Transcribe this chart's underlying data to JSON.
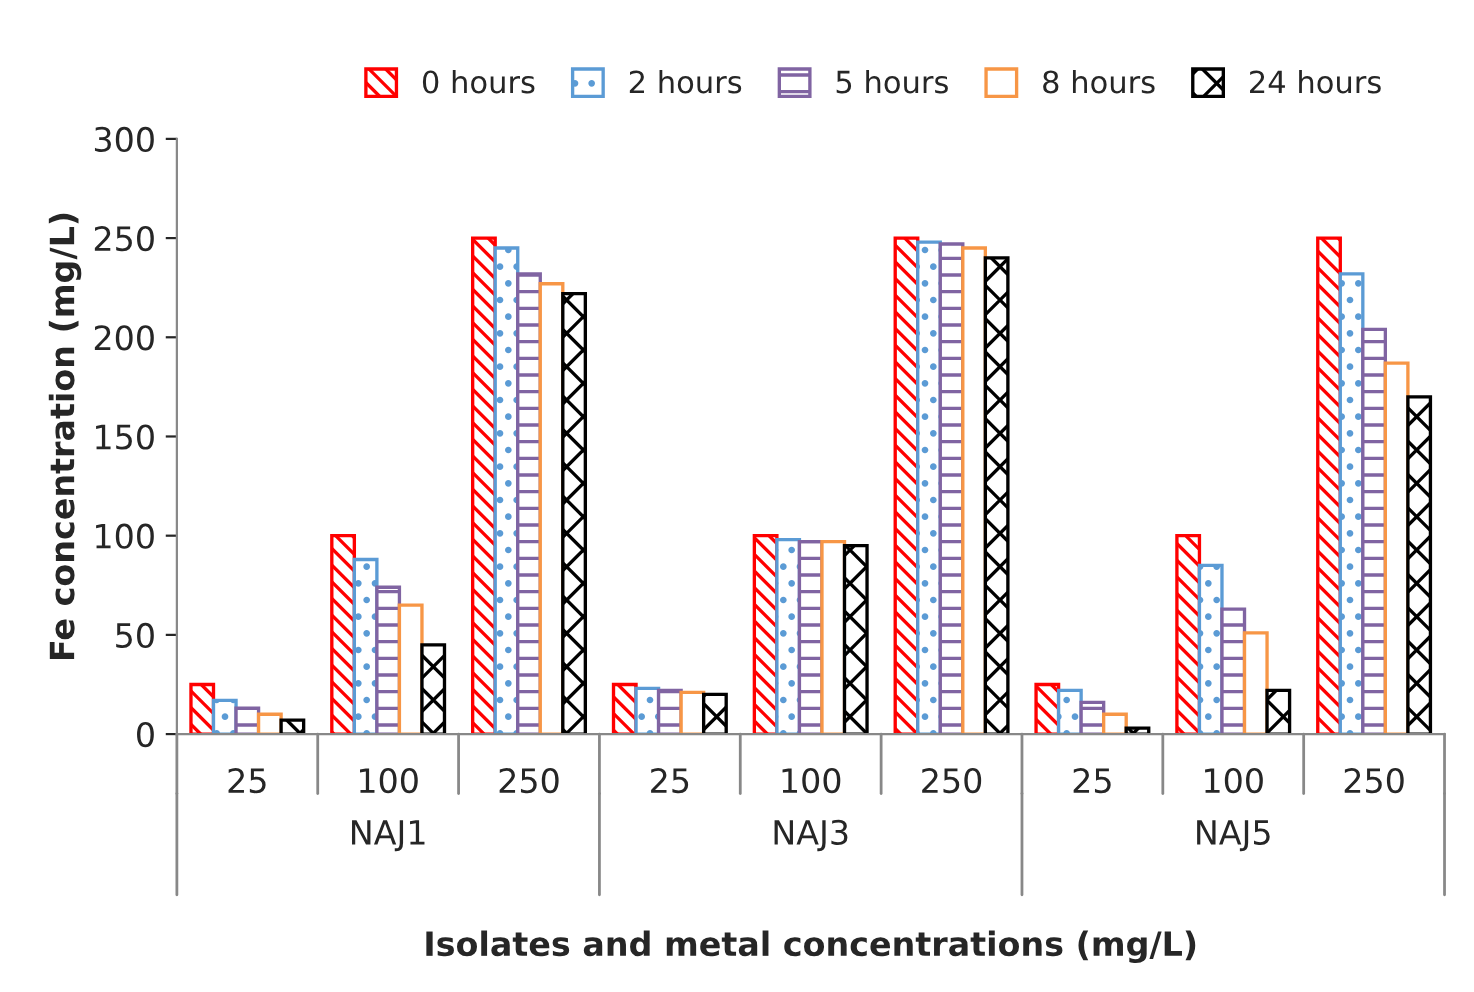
{
  "chart_data": {
    "type": "bar",
    "xlabel": "Isolates and metal concentrations (mg/L)",
    "ylabel": "Fe concentration (mg/L)",
    "categories": [
      "25",
      "100",
      "250",
      "25",
      "100",
      "250",
      "25",
      "100",
      "250"
    ],
    "annotations": [
      "NAJ1",
      "NAJ3",
      "NAJ5"
    ],
    "series": [
      {
        "name": "0 hours",
        "color": "#ff0000",
        "values": [
          25,
          100,
          250,
          25,
          100,
          250,
          25,
          100,
          250
        ]
      },
      {
        "name": "2 hours",
        "color": "#5b9bd5",
        "values": [
          17,
          88,
          245,
          23,
          98,
          248,
          22,
          85,
          232
        ]
      },
      {
        "name": "5 hours",
        "color": "#8064a2",
        "values": [
          13,
          74,
          232,
          22,
          97,
          247,
          16,
          63,
          204
        ]
      },
      {
        "name": "8 hours",
        "color": "#f79646",
        "values": [
          10,
          65,
          227,
          21,
          97,
          245,
          10,
          51,
          187
        ]
      },
      {
        "name": "24 hours",
        "color": "#000000",
        "values": [
          7,
          45,
          222,
          20,
          95,
          240,
          3,
          22,
          170
        ]
      }
    ],
    "ylim": [
      0,
      300
    ],
    "yticks": [
      0,
      50,
      100,
      150,
      200,
      250,
      300
    ],
    "grid": false,
    "legend": "top"
  }
}
